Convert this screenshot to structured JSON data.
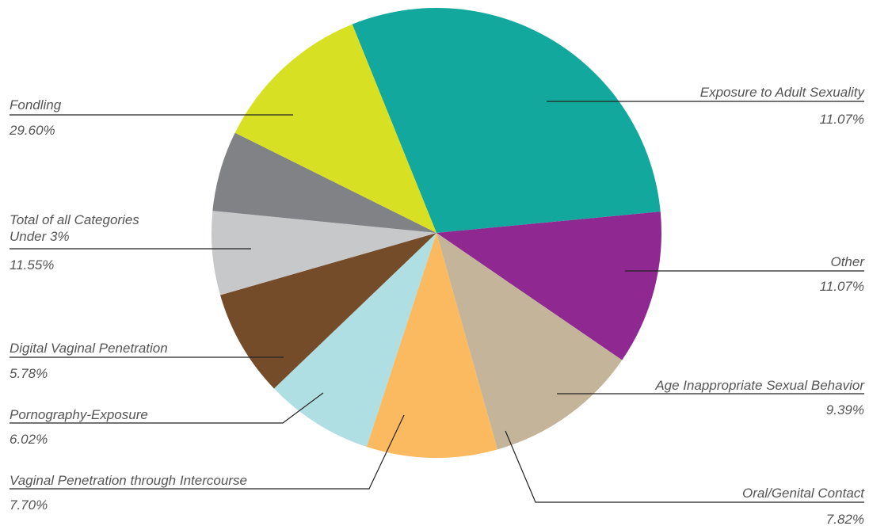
{
  "chart_data": {
    "type": "pie",
    "title": "",
    "slices": [
      {
        "label": "Fondling",
        "value": 29.6,
        "value_label": "29.60%",
        "color": "#13A89E"
      },
      {
        "label": "Exposure to Adult Sexuality",
        "value": 11.07,
        "value_label": "11.07%",
        "color": "#8F2891"
      },
      {
        "label": "Other",
        "value": 11.07,
        "value_label": "11.07%",
        "color": "#C4B49A"
      },
      {
        "label": "Age Inappropriate Sexual Behavior",
        "value": 9.39,
        "value_label": "9.39%",
        "color": "#FBBA5F"
      },
      {
        "label": "Oral/Genital Contact",
        "value": 7.82,
        "value_label": "7.82%",
        "color": "#B0DFE3"
      },
      {
        "label": "Vaginal Penetration through Intercourse",
        "value": 7.7,
        "value_label": "7.70%",
        "color": "#754C29"
      },
      {
        "label": "Pornography-Exposure",
        "value": 6.02,
        "value_label": "6.02%",
        "color": "#C7C8CA"
      },
      {
        "label": "Digital Vaginal Penetration",
        "value": 5.78,
        "value_label": "5.78%",
        "color": "#808285"
      },
      {
        "label": "Total of all Categories Under 3%",
        "label_lines": [
          "Total of all Categories",
          "Under 3%"
        ],
        "value": 11.55,
        "value_label": "11.55%",
        "color": "#D7E022"
      }
    ]
  }
}
